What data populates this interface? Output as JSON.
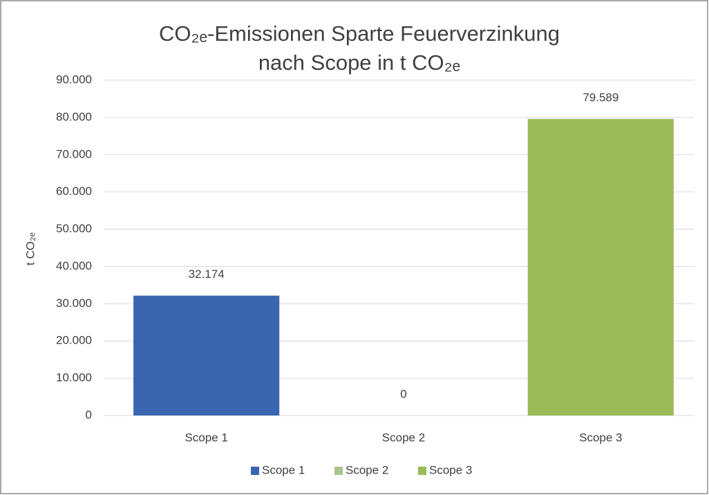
{
  "chart_data": {
    "type": "bar",
    "title": "CO₂ₑ-Emissionen Sparte Feuerverzinkung nach Scope in t CO₂ₑ",
    "y_label": "t CO₂ₑ",
    "categories": [
      "Scope 1",
      "Scope 2",
      "Scope 3"
    ],
    "values": [
      32174,
      0,
      79589
    ],
    "value_labels": [
      "32.174",
      "0",
      "79.589"
    ],
    "colors": [
      "#3a66b0",
      "#a9c48f",
      "#9bbb59"
    ],
    "ylim": [
      0,
      90000
    ],
    "yticks": [
      0,
      {
        "value": 10000,
        "label": "10.000"
      },
      {
        "value": 20000,
        "label": "20.000"
      },
      {
        "value": 30000,
        "label": "30.000"
      },
      {
        "value": 40000,
        "label": "40.000"
      },
      {
        "value": 50000,
        "label": "50.000"
      },
      {
        "value": 60000,
        "label": "60.000"
      },
      {
        "value": 70000,
        "label": "70.000"
      },
      {
        "value": 80000,
        "label": "80.000"
      },
      {
        "value": 90000,
        "label": "90.000"
      }
    ],
    "grid": true,
    "legend": "bottom"
  }
}
